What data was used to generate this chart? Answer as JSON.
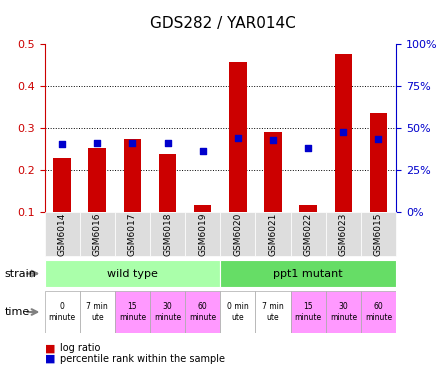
{
  "title": "GDS282 / YAR014C",
  "samples": [
    "GSM6014",
    "GSM6016",
    "GSM6017",
    "GSM6018",
    "GSM6019",
    "GSM6020",
    "GSM6021",
    "GSM6022",
    "GSM6023",
    "GSM6015"
  ],
  "log_ratio": [
    0.228,
    0.253,
    0.273,
    0.238,
    0.118,
    0.458,
    0.29,
    0.118,
    0.475,
    0.335
  ],
  "percentile": [
    0.404,
    0.412,
    0.414,
    0.409,
    0.362,
    0.443,
    0.432,
    0.381,
    0.476,
    0.438
  ],
  "bar_color": "#cc0000",
  "dot_color": "#0000cc",
  "ymin": 0.1,
  "ymax": 0.5,
  "y2min": 0.0,
  "y2max": 1.0,
  "yticks": [
    0.1,
    0.2,
    0.3,
    0.4,
    0.5
  ],
  "ytick_labels": [
    "0.1",
    "0.2",
    "0.3",
    "0.4",
    "0.5"
  ],
  "y2ticks": [
    0.0,
    0.25,
    0.5,
    0.75,
    1.0
  ],
  "y2tick_labels": [
    "0%",
    "25%",
    "50%",
    "75%",
    "100%"
  ],
  "gridlines": [
    0.2,
    0.3,
    0.4
  ],
  "strain_labels": [
    "wild type",
    "ppt1 mutant"
  ],
  "strain_ranges": [
    [
      0,
      5
    ],
    [
      5,
      10
    ]
  ],
  "strain_colors": [
    "#99ff99",
    "#66ee66"
  ],
  "time_labels": [
    "0\nminute",
    "7 min\nute",
    "15\nminute",
    "30\nminute",
    "60\nminute",
    "0 min\nute",
    "7 min\nute",
    "15\nminute",
    "30\nminute",
    "60\nminute"
  ],
  "time_colors": [
    "#ffffff",
    "#ffffff",
    "#ff99ff",
    "#ff99ff",
    "#ff99ff",
    "#ffffff",
    "#ffffff",
    "#ff99ff",
    "#ff99ff",
    "#ff99ff"
  ],
  "tick_label_color_left": "#cc0000",
  "tick_label_color_right": "#0000cc",
  "xlabel_color": "#555555",
  "legend_log_ratio": "log ratio",
  "legend_percentile": "percentile rank within the sample",
  "bg_color": "#ffffff",
  "xticklabel_bg": "#dddddd"
}
